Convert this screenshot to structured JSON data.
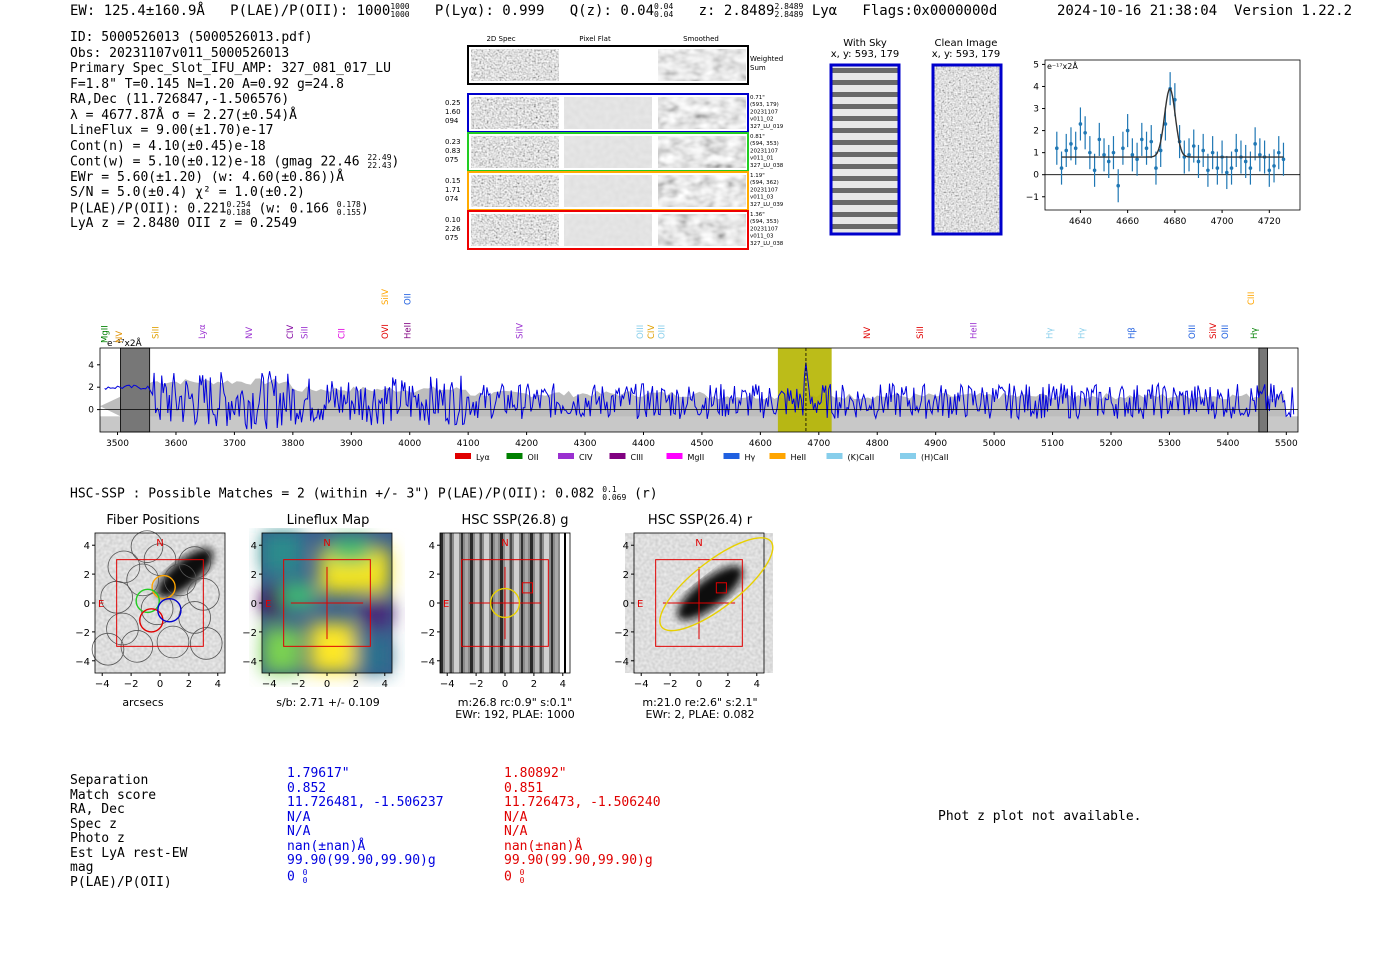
{
  "header": {
    "ew": "EW: 125.4±160.9Å",
    "plae_label": "P(LAE)/P(OII): 1000",
    "plae_sup": "1000",
    "plae_sub": "1000",
    "plya": "P(Lyα): 0.999",
    "qz": "Q(z): 0.04",
    "qz_sup": "0.04",
    "qz_sub": "0.04",
    "z": "z: 2.8489",
    "z_sup": "2.8489",
    "z_sub": "2.8489",
    "line": "Lyα",
    "flags": "Flags:0x0000000d",
    "datetime": "2024-10-16 21:38:04",
    "version": "Version 1.22.2"
  },
  "info": {
    "id": "ID: 5000526013 (5000526013.pdf)",
    "obs": "Obs: 20231107v011_5000526013",
    "primary": "Primary Spec_Slot_IFU_AMP: 327_081_017_LU",
    "params": "F=1.8\"  T=0.145  N=1.20  A=0.92  g=24.8",
    "radec": "RA,Dec (11.726847,-1.506576)",
    "lambda": "λ = 4677.87Å  σ = 2.27(±0.54)Å",
    "lineflux": "LineFlux = 9.00(±1.70)e-17",
    "contn": "Cont(n) = 4.10(±0.45)e-18",
    "contw": "Cont(w) = 5.10(±0.12)e-18 (gmag 22.46",
    "contw_sup": "22.49",
    "contw_sub": "22.43",
    "contw_end": ")",
    "ewr": "EWr = 5.60(±1.20) (w: 4.60(±0.86))Å",
    "sn": "S/N = 5.0(±0.4)  χ² = 1.0(±0.2)",
    "plae": "P(LAE)/P(OII): 0.221",
    "plae_sup": "0.254",
    "plae_sub": "0.188",
    "plae_w": "(w: 0.166",
    "plae_w_sup": "0.178",
    "plae_w_sub": "0.155",
    "plae_end": ")",
    "lyaz": "LyA z = 2.8480   OII z = 0.2549"
  },
  "cutouts": {
    "col_labels": [
      "2D Spec",
      "Pixel Flat",
      "Smoothed"
    ],
    "weighted": [
      "Weighted",
      "Sum"
    ],
    "rows": [
      {
        "left": [
          "0.25",
          "1.60",
          "094"
        ],
        "right": [
          "0.71\"",
          "(593, 179)",
          "20231107",
          "v011_02",
          "327_LU_019"
        ],
        "color": "#0000cc"
      },
      {
        "left": [
          "0.23",
          "0.83",
          "075"
        ],
        "right": [
          "0.81\"",
          "(594, 353)",
          "20231107",
          "v011_01",
          "327_LU_038"
        ],
        "color": "#22cc22"
      },
      {
        "left": [
          "0.15",
          "1.71",
          "074"
        ],
        "right": [
          "1.19\"",
          "(594, 362)",
          "20231107",
          "v011_03",
          "327_LU_039"
        ],
        "color": "#ffaa00"
      },
      {
        "left": [
          "0.10",
          "2.26",
          "075"
        ],
        "right": [
          "1.36\"",
          "(594, 353)",
          "20231107",
          "v011_03",
          "327_LU_038"
        ],
        "color": "#ee0000"
      }
    ]
  },
  "sky": {
    "with_sky_title": "With Sky",
    "with_sky_xy": "x, y: 593, 179",
    "clean_title": "Clean Image",
    "clean_xy": "x, y: 593, 179"
  },
  "chart_data": [
    {
      "id": "line_fit",
      "type": "scatter",
      "ylabel_unit": "e⁻¹⁷x2Å",
      "xlim": [
        4625,
        4733
      ],
      "ylim": [
        -1.6,
        5.2
      ],
      "xticks": [
        4640,
        4660,
        4680,
        4700,
        4720
      ],
      "yticks": [
        -1,
        0,
        1,
        2,
        3,
        4,
        5
      ],
      "x": [
        4630,
        4632,
        4634,
        4636,
        4638,
        4640,
        4642,
        4644,
        4646,
        4648,
        4650,
        4652,
        4654,
        4656,
        4658,
        4660,
        4662,
        4664,
        4666,
        4668,
        4670,
        4672,
        4674,
        4676,
        4678,
        4680,
        4682,
        4684,
        4686,
        4688,
        4690,
        4692,
        4694,
        4696,
        4698,
        4700,
        4702,
        4704,
        4706,
        4708,
        4710,
        4712,
        4714,
        4716,
        4718,
        4720,
        4722,
        4724,
        4726
      ],
      "y": [
        1.2,
        0.3,
        1.1,
        1.4,
        1.2,
        2.3,
        1.9,
        1.0,
        0.2,
        1.6,
        0.9,
        0.6,
        1.0,
        -0.5,
        1.2,
        2.0,
        0.9,
        0.7,
        1.6,
        1.2,
        1.5,
        0.3,
        1.1,
        2.3,
        3.9,
        3.4,
        1.5,
        0.8,
        0.9,
        1.3,
        0.6,
        1.1,
        0.2,
        1.0,
        0.3,
        0.8,
        0.1,
        0.3,
        1.1,
        0.8,
        0.6,
        0.3,
        1.4,
        0.9,
        0.8,
        0.2,
        0.4,
        1.0,
        0.7
      ],
      "err": 0.75,
      "fit": {
        "center": 4677.9,
        "sigma": 2.27,
        "amp": 3.1,
        "cont": 0.8
      }
    },
    {
      "id": "full_spectrum",
      "type": "line",
      "ylabel_unit": "e⁻¹⁷x2Å",
      "xlim": [
        3470,
        5520
      ],
      "ylim": [
        -2,
        5.5
      ],
      "xticks": [
        3500,
        3600,
        3700,
        3800,
        3900,
        4000,
        4100,
        4200,
        4300,
        4400,
        4500,
        4600,
        4700,
        4800,
        4900,
        5000,
        5100,
        5200,
        5300,
        5400,
        5500
      ],
      "yticks": [
        0,
        2,
        4
      ],
      "highlight": [
        4630,
        4722
      ],
      "line_center": 4678,
      "hatched": [
        [
          3505,
          3555
        ],
        [
          5453,
          5468
        ]
      ],
      "line_markers": [
        {
          "label": "MgII",
          "x": 3483,
          "color": "#008000",
          "row": "low"
        },
        {
          "label": "NV",
          "x": 3508,
          "color": "#e09000",
          "row": "low"
        },
        {
          "label": "SiII",
          "x": 3570,
          "color": "#e0a000",
          "row": "mid"
        },
        {
          "label": "Lyα",
          "x": 3650,
          "color": "#9a30d0",
          "row": "mid"
        },
        {
          "label": "NV",
          "x": 3730,
          "color": "#9a30d0",
          "row": "mid"
        },
        {
          "label": "CIV",
          "x": 3800,
          "color": "#8000a0",
          "row": "mid"
        },
        {
          "label": "SiII",
          "x": 3825,
          "color": "#9a30d0",
          "row": "mid"
        },
        {
          "label": "CII",
          "x": 3888,
          "color": "#e000e0",
          "row": "mid"
        },
        {
          "label": "SiIV",
          "x": 3963,
          "color": "#ffa500",
          "row": "high"
        },
        {
          "label": "OVI",
          "x": 3963,
          "color": "#e00000",
          "row": "mid"
        },
        {
          "label": "OII",
          "x": 4001,
          "color": "#2060e0",
          "row": "high"
        },
        {
          "label": "HeII",
          "x": 4001,
          "color": "#800080",
          "row": "mid"
        },
        {
          "label": "SiIV",
          "x": 4193,
          "color": "#9a30d0",
          "row": "mid"
        },
        {
          "label": "OIII",
          "x": 4399,
          "color": "#87ceeb",
          "row": "mid"
        },
        {
          "label": "CIV",
          "x": 4418,
          "color": "#e0a000",
          "row": "mid"
        },
        {
          "label": "OIII",
          "x": 4436,
          "color": "#87ceeb",
          "row": "mid"
        },
        {
          "label": "NV",
          "x": 4788,
          "color": "#e00000",
          "row": "mid"
        },
        {
          "label": "SiII",
          "x": 4878,
          "color": "#e00000",
          "row": "mid"
        },
        {
          "label": "HeII",
          "x": 4970,
          "color": "#9a30d0",
          "row": "mid"
        },
        {
          "label": "Hγ",
          "x": 5100,
          "color": "#87ceeb",
          "row": "mid"
        },
        {
          "label": "Hγ",
          "x": 5155,
          "color": "#87ceeb",
          "row": "mid"
        },
        {
          "label": "Hβ",
          "x": 5240,
          "color": "#2060e0",
          "row": "mid"
        },
        {
          "label": "OIII",
          "x": 5344,
          "color": "#2060e0",
          "row": "mid"
        },
        {
          "label": "SiIV",
          "x": 5380,
          "color": "#e00000",
          "row": "mid"
        },
        {
          "label": "OIII",
          "x": 5400,
          "color": "#2060e0",
          "row": "mid"
        },
        {
          "label": "CIII",
          "x": 5445,
          "color": "#ffa500",
          "row": "high"
        },
        {
          "label": "Hγ",
          "x": 5450,
          "color": "#008000",
          "row": "mid"
        }
      ],
      "legend": [
        {
          "label": "Lyα",
          "color": "#e00000"
        },
        {
          "label": "OII",
          "color": "#008000"
        },
        {
          "label": "CIV",
          "color": "#9a30d0"
        },
        {
          "label": "CIII",
          "color": "#800080"
        },
        {
          "label": "MgII",
          "color": "#ff00ff"
        },
        {
          "label": "Hγ",
          "color": "#2060e0"
        },
        {
          "label": "HeII",
          "color": "#ffa500"
        },
        {
          "label": "(K)CaII",
          "color": "#87ceeb"
        },
        {
          "label": "(H)CaII",
          "color": "#87ceeb"
        }
      ]
    },
    {
      "id": "fiber_positions",
      "type": "scatter",
      "title": "Fiber Positions",
      "xlim": [
        -4.5,
        4.5
      ],
      "ylim": [
        -4.5,
        4.5
      ],
      "ticks": [
        -4,
        -2,
        0,
        2,
        4
      ],
      "xlabel": "arcsecs"
    },
    {
      "id": "lineflux_map",
      "type": "heatmap",
      "title": "Lineflux Map",
      "xlim": [
        -4.5,
        4.5
      ],
      "ylim": [
        -4.5,
        4.5
      ],
      "ticks": [
        -4,
        -2,
        0,
        2,
        4
      ],
      "xlabel": "s/b: 2.71 +/- 0.109"
    },
    {
      "id": "hsc_g",
      "type": "heatmap",
      "title": "HSC SSP(26.8) g",
      "xlim": [
        -4.5,
        4.5
      ],
      "ylim": [
        -4.5,
        4.5
      ],
      "ticks": [
        -4,
        -2,
        0,
        2,
        4
      ],
      "xlabel": "m:26.8 rc:0.9\"  s:0.1\"",
      "xlabel2": "EWr: 192, PLAE: 1000"
    },
    {
      "id": "hsc_r",
      "type": "heatmap",
      "title": "HSC SSP(26.4) r",
      "xlim": [
        -4.5,
        4.5
      ],
      "ylim": [
        -4.5,
        4.5
      ],
      "ticks": [
        -4,
        -2,
        0,
        2,
        4
      ],
      "xlabel": "m:21.0  re:2.6\"  s:2.1\"",
      "xlabel2": "EWr: 2, PLAE: 0.082"
    }
  ],
  "hsc": {
    "summary": "HSC-SSP : Possible Matches = 2 (within +/- 3\")  P(LAE)/P(OII): 0.082",
    "summary_sup": "0.1",
    "summary_sub": "0.069",
    "summary_end": "(r)"
  },
  "compass": {
    "n": "N",
    "e": "E"
  },
  "matches": {
    "labels": [
      "Separation",
      "Match score",
      "RA, Dec",
      "Spec z",
      "Photo z",
      "Est LyA rest-EW",
      "mag",
      "P(LAE)/P(OII)"
    ],
    "blue": [
      "1.79617\"",
      "0.852",
      "11.726481, -1.506237",
      "N/A",
      "N/A",
      "nan(±nan)Å",
      "99.90(99.90,99.90)g",
      "0"
    ],
    "red": [
      "1.80892\"",
      "0.851",
      "11.726473, -1.506240",
      "N/A",
      "N/A",
      "nan(±nan)Å",
      "99.90(99.90,99.90)g",
      "0"
    ],
    "plae_sup": "0",
    "plae_sub": "0",
    "photz_note": "Phot z plot not available."
  }
}
